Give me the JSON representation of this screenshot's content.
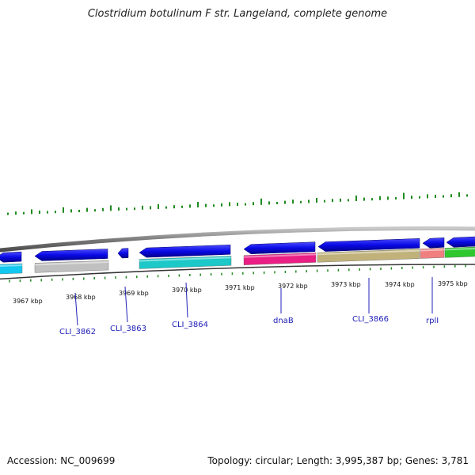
{
  "title": "Clostridium botulinum F str. Langeland, complete genome",
  "footer": {
    "accession": "Accession: NC_009699",
    "summary": "Topology: circular; Length: 3,995,387 bp; Genes: 3,781"
  },
  "kbp_ticks": [
    "3967 kbp",
    "3968 kbp",
    "3969 kbp",
    "3970 kbp",
    "3971 kbp",
    "3972 kbp",
    "3973 kbp",
    "3974 kbp",
    "3975 kbp"
  ],
  "gene_labels": [
    "CLI_3862",
    "CLI_3863",
    "CLI_3864",
    "dnaB",
    "CLI_3866",
    "rplI"
  ],
  "colors": {
    "strand_arrow": "#0a0ae6",
    "gc_ticks": "#1f8a1f",
    "backbone": "#808080",
    "label_text": "#2020b8",
    "cog_blue": "#12c8f0",
    "cog_gray": "#c0c0c0",
    "cog_teal": "#1cc8c8",
    "cog_pink": "#ea1e84",
    "cog_khaki": "#c0b27a",
    "cog_salmon": "#f08080",
    "cog_green": "#2ec82e"
  }
}
